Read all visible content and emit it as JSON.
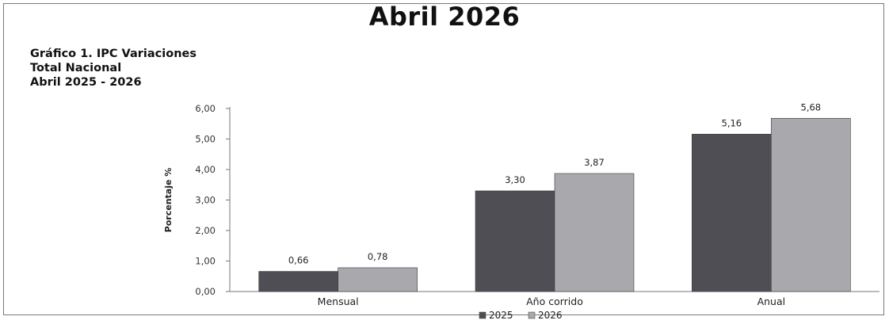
{
  "page": {
    "heading": "Abril 2026"
  },
  "chart_data": {
    "type": "bar",
    "title": "Gráfico 1. IPC Variaciones",
    "subtitle_lines": [
      "Total Nacional",
      "Abril 2025 - 2026"
    ],
    "ylabel": "Porcentaje %",
    "xlabel": "",
    "ylim": [
      0,
      6
    ],
    "yticks": [
      "0,00",
      "1,00",
      "2,00",
      "3,00",
      "4,00",
      "5,00",
      "6,00"
    ],
    "categories": [
      "Mensual",
      "Año corrido",
      "Anual"
    ],
    "series": [
      {
        "name": "2025",
        "values": [
          0.66,
          3.3,
          5.16
        ],
        "labels": [
          "0,66",
          "3,30",
          "5,16"
        ],
        "color": "#4f4e54"
      },
      {
        "name": "2026",
        "values": [
          0.78,
          3.87,
          5.68
        ],
        "labels": [
          "0,78",
          "3,87",
          "5,68"
        ],
        "color": "#a9a9ad"
      }
    ],
    "grid": false,
    "legend": "bottom-center"
  }
}
